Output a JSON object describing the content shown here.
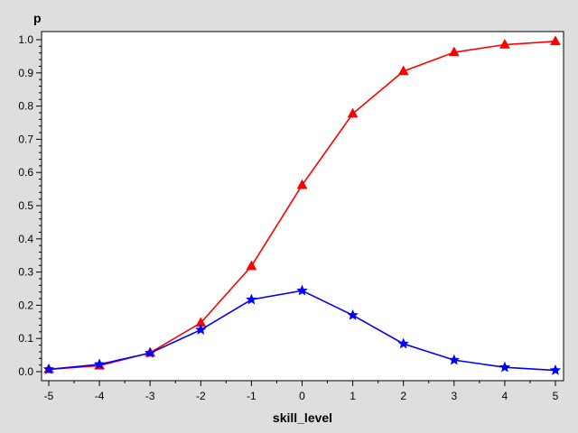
{
  "chart_data": {
    "type": "line",
    "xlabel": "skill_level",
    "ylabel": "p",
    "x": [
      -5,
      -4,
      -3,
      -2,
      -1,
      0,
      1,
      2,
      3,
      4,
      5
    ],
    "xlim": [
      -5,
      5
    ],
    "ylim": [
      0,
      1
    ],
    "xticks": [
      "-5",
      "-4",
      "-3",
      "-2",
      "-1",
      "0",
      "1",
      "2",
      "3",
      "4",
      "5"
    ],
    "yticks": [
      "0.0",
      "0.1",
      "0.2",
      "0.3",
      "0.4",
      "0.5",
      "0.6",
      "0.7",
      "0.8",
      "0.9",
      "1.0"
    ],
    "grid": false,
    "series": [
      {
        "color": "#ff0000",
        "marker": "triangle",
        "values": [
          0.007,
          0.018,
          0.057,
          0.147,
          0.318,
          0.562,
          0.777,
          0.905,
          0.962,
          0.985,
          0.995
        ]
      },
      {
        "color": "#0000ff",
        "marker": "star",
        "values": [
          0.007,
          0.022,
          0.056,
          0.126,
          0.217,
          0.244,
          0.17,
          0.084,
          0.035,
          0.013,
          0.004
        ]
      }
    ]
  }
}
